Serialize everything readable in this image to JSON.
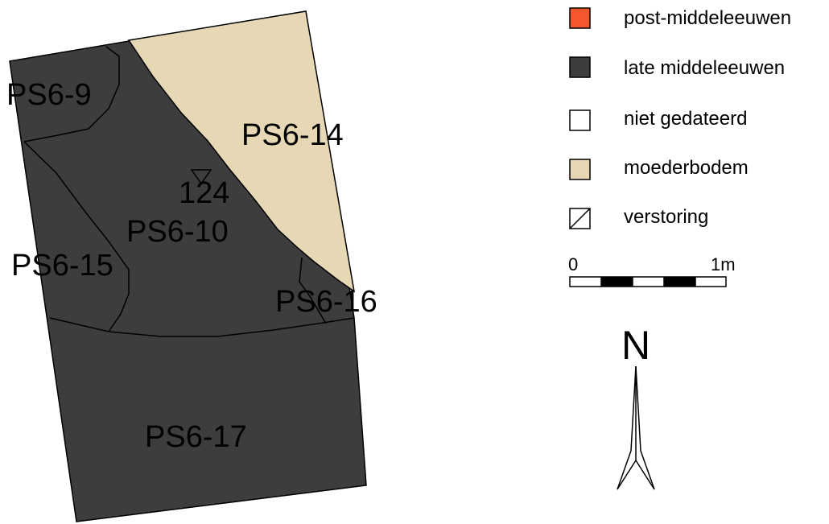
{
  "colors": {
    "post_middeleeuwen": "#f4562e",
    "late_middeleeuwen": "#3d3d3d",
    "niet_gedateerd": "#ffffff",
    "moederbodem": "#e6d8b5",
    "outline": "#000000"
  },
  "features": {
    "ps6_9": "PS6-9",
    "ps6_14": "PS6-14",
    "ps6_10": "PS6-10",
    "ps6_15": "PS6-15",
    "ps6_16": "PS6-16",
    "ps6_17": "PS6-17",
    "point_124": "124"
  },
  "legend": {
    "items": [
      {
        "label": "post-middeleeuwen",
        "swatch": "post-middeleeuwen-swatch"
      },
      {
        "label": "late middeleeuwen",
        "swatch": "late-middeleeuwen-swatch"
      },
      {
        "label": "niet gedateerd",
        "swatch": "niet-gedateerd-swatch"
      },
      {
        "label": "moederbodem",
        "swatch": "moederbodem-swatch"
      },
      {
        "label": "verstoring",
        "swatch": "verstoring-swatch"
      }
    ]
  },
  "scale_bar": {
    "start_label": "0",
    "end_label": "1m"
  },
  "north_arrow": {
    "label": "N",
    "icon": "north-arrow-icon"
  }
}
